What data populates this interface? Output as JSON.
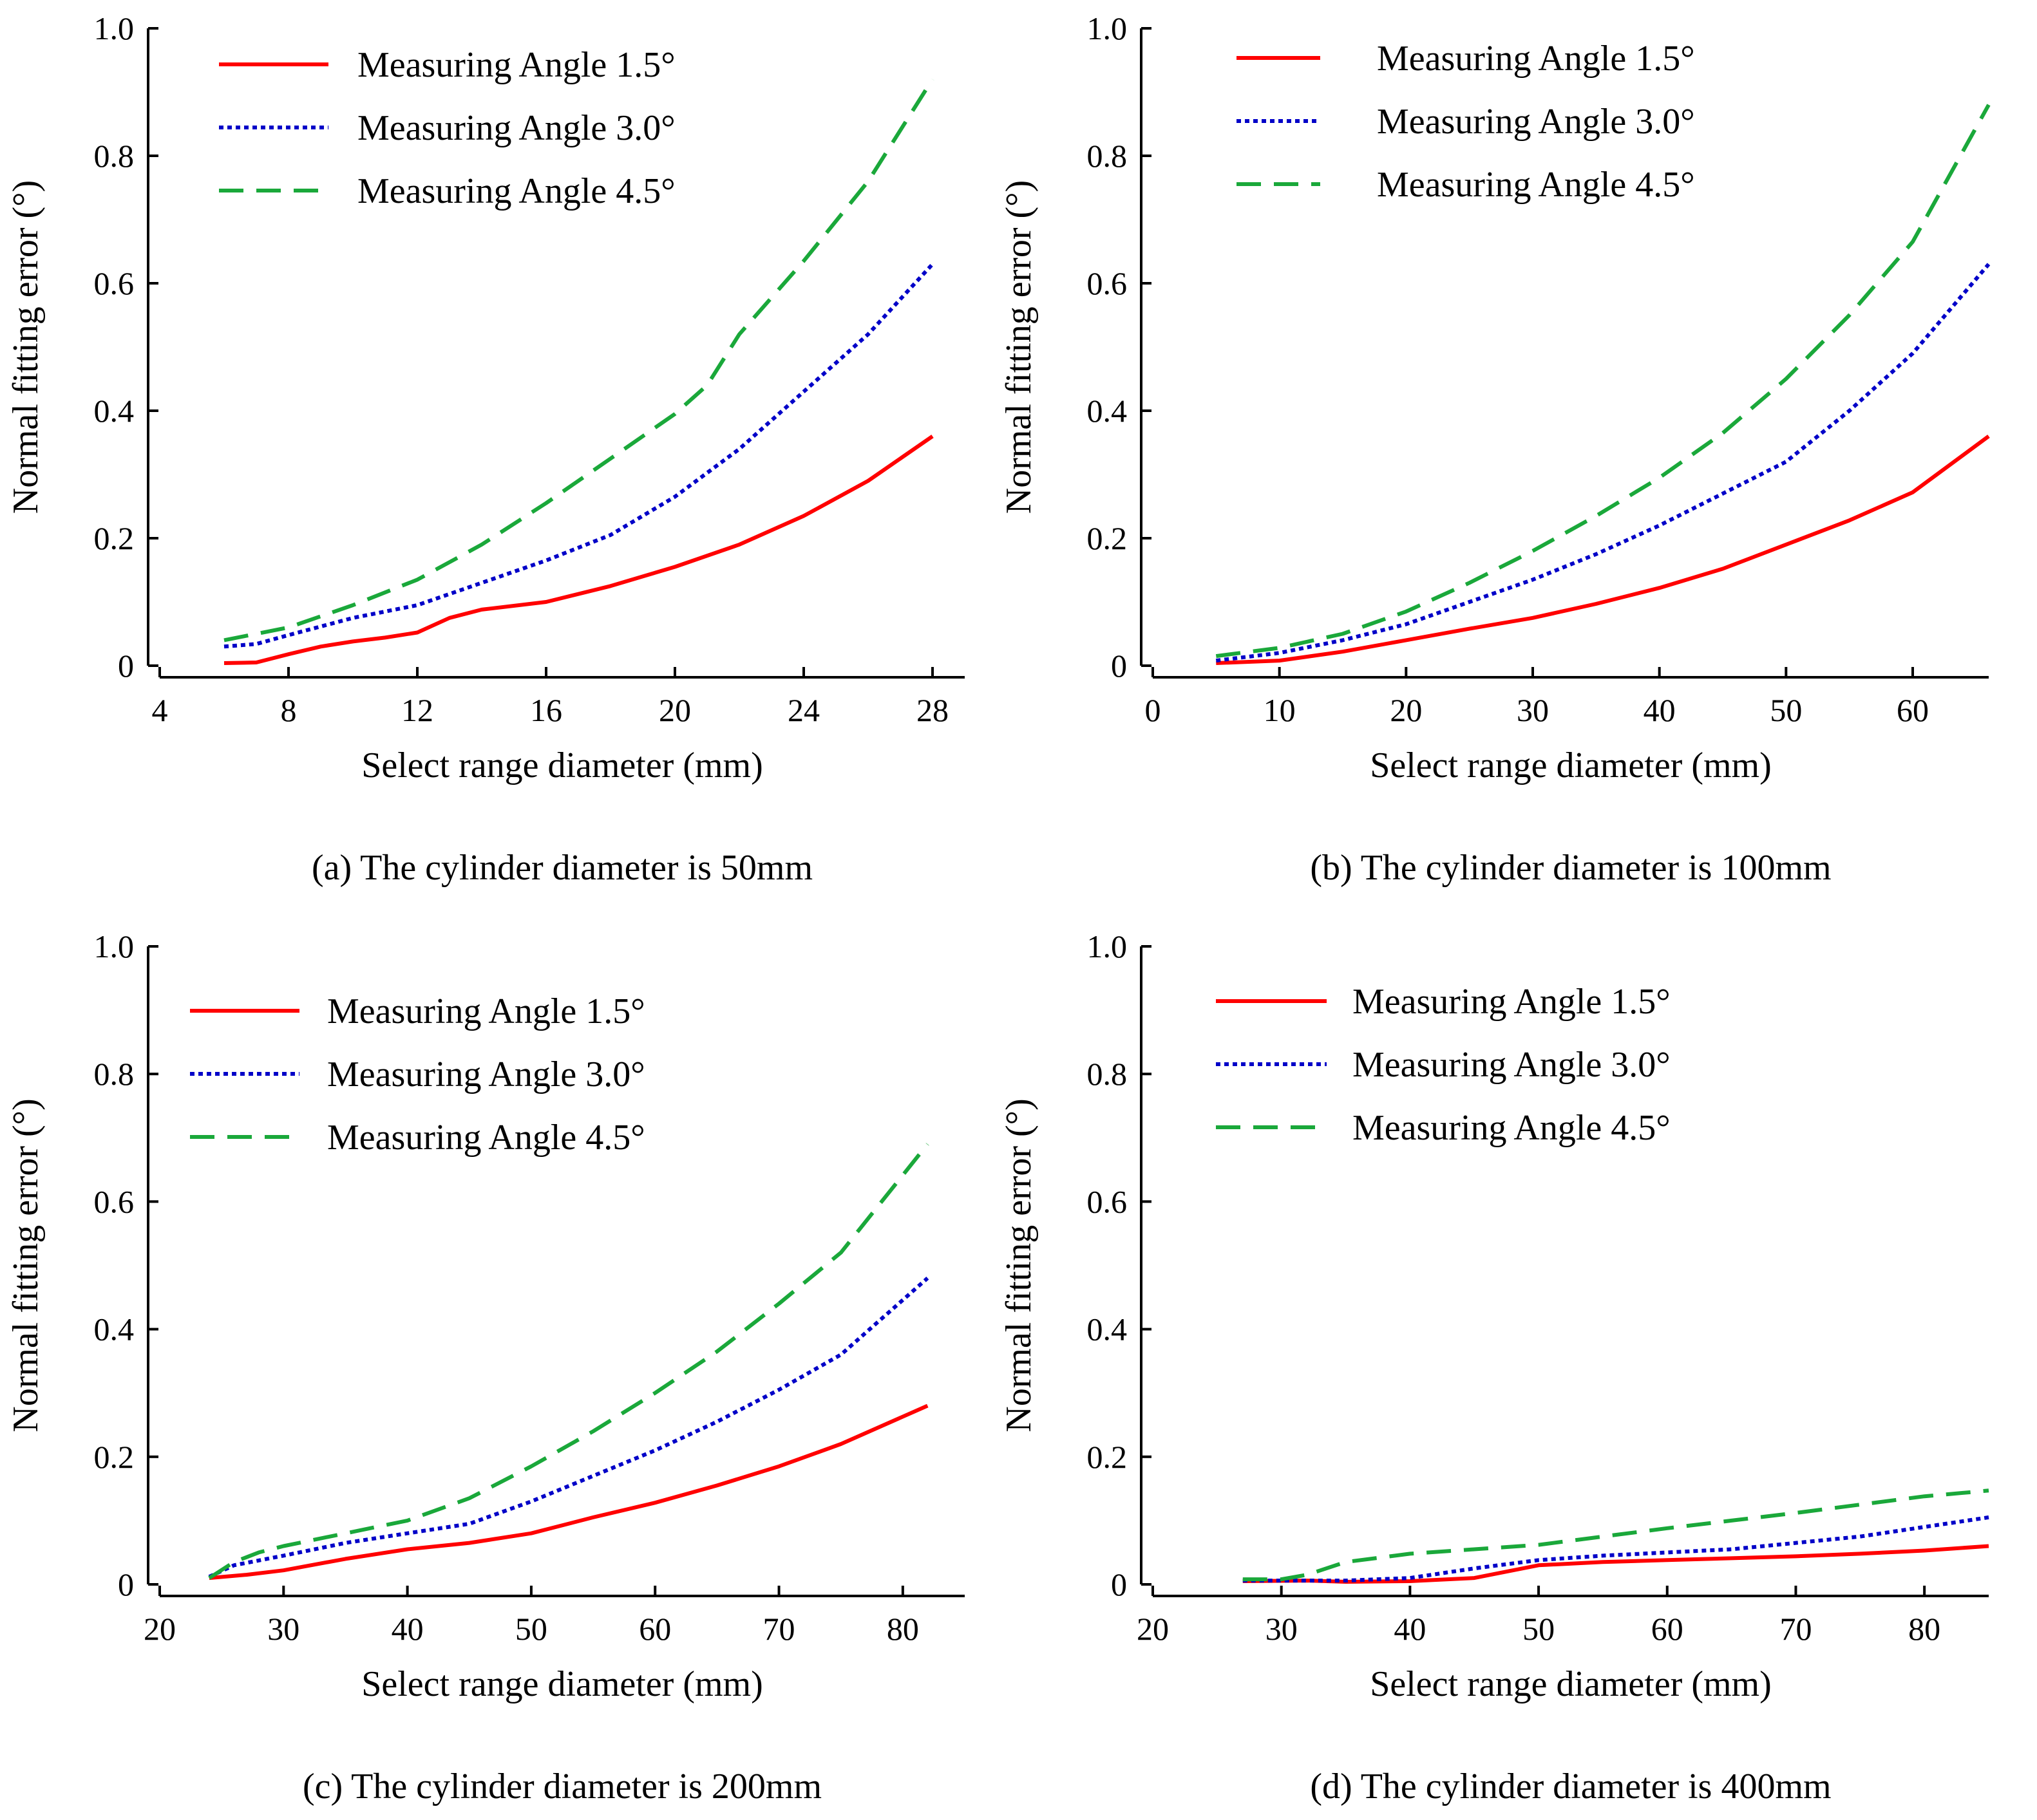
{
  "series_styles": [
    {
      "name": "Measuring Angle 1.5°",
      "color": "#ff0000",
      "dash": "solid"
    },
    {
      "name": "Measuring Angle 3.0°",
      "color": "#0000c8",
      "dash": "dotted"
    },
    {
      "name": "Measuring Angle 4.5°",
      "color": "#1aa83a",
      "dash": "dashed"
    }
  ],
  "chart_data": [
    {
      "type": "line",
      "title": "(a) The cylinder diameter is 50mm",
      "xlabel": "Select range diameter (mm)",
      "ylabel": "Normal fitting error (°)",
      "xlim": [
        4,
        29
      ],
      "ylim": [
        0,
        1.0
      ],
      "xticks": [
        4,
        8,
        12,
        16,
        20,
        24,
        28
      ],
      "yticks": [
        0,
        0.2,
        0.4,
        0.6,
        0.8,
        1.0
      ],
      "ytick_labels": [
        "0",
        "0.2",
        "0.4",
        "0.6",
        "0.8",
        "1.0"
      ],
      "legend_position": "top-left",
      "series": [
        {
          "name": "Measuring Angle 1.5°",
          "x": [
            6,
            7,
            8,
            9,
            10,
            11,
            12,
            13,
            14,
            16,
            18,
            20,
            22,
            24,
            26,
            28
          ],
          "y": [
            0.004,
            0.005,
            0.018,
            0.03,
            0.038,
            0.044,
            0.052,
            0.075,
            0.088,
            0.1,
            0.125,
            0.155,
            0.19,
            0.235,
            0.29,
            0.36
          ]
        },
        {
          "name": "Measuring Angle 3.0°",
          "x": [
            6,
            7,
            8,
            10,
            12,
            14,
            16,
            18,
            20,
            22,
            24,
            26,
            28
          ],
          "y": [
            0.03,
            0.034,
            0.048,
            0.075,
            0.095,
            0.13,
            0.165,
            0.205,
            0.265,
            0.34,
            0.43,
            0.52,
            0.63
          ]
        },
        {
          "name": "Measuring Angle 4.5°",
          "x": [
            6,
            8,
            10,
            12,
            14,
            16,
            18,
            20,
            21,
            22,
            24,
            26,
            28
          ],
          "y": [
            0.04,
            0.06,
            0.095,
            0.135,
            0.19,
            0.255,
            0.325,
            0.395,
            0.44,
            0.52,
            0.635,
            0.76,
            0.92
          ]
        }
      ]
    },
    {
      "type": "line",
      "title": "(b) The cylinder diameter is 100mm",
      "xlabel": "Select range diameter (mm)",
      "ylabel": "Normal fitting error (°)",
      "xlim": [
        0,
        66
      ],
      "ylim": [
        0,
        1.0
      ],
      "xticks": [
        0,
        10,
        20,
        30,
        40,
        50,
        60
      ],
      "yticks": [
        0,
        0.2,
        0.4,
        0.6,
        0.8,
        1.0
      ],
      "ytick_labels": [
        "0",
        "0.2",
        "0.4",
        "0.6",
        "0.8",
        "1.0"
      ],
      "legend_position": "top-left",
      "series": [
        {
          "name": "Measuring Angle 1.5°",
          "x": [
            5,
            10,
            15,
            20,
            25,
            30,
            35,
            40,
            45,
            50,
            55,
            60,
            66
          ],
          "y": [
            0.004,
            0.008,
            0.022,
            0.04,
            0.058,
            0.075,
            0.097,
            0.122,
            0.152,
            0.19,
            0.228,
            0.272,
            0.36
          ]
        },
        {
          "name": "Measuring Angle 3.0°",
          "x": [
            5,
            10,
            15,
            20,
            25,
            30,
            35,
            40,
            45,
            50,
            55,
            60,
            66
          ],
          "y": [
            0.008,
            0.02,
            0.04,
            0.065,
            0.1,
            0.135,
            0.175,
            0.22,
            0.27,
            0.32,
            0.4,
            0.49,
            0.63
          ]
        },
        {
          "name": "Measuring Angle 4.5°",
          "x": [
            5,
            10,
            15,
            20,
            25,
            30,
            35,
            40,
            45,
            50,
            55,
            60,
            66
          ],
          "y": [
            0.015,
            0.028,
            0.05,
            0.085,
            0.13,
            0.18,
            0.235,
            0.295,
            0.365,
            0.45,
            0.55,
            0.665,
            0.88
          ]
        }
      ]
    },
    {
      "type": "line",
      "title": "(c) The cylinder diameter is 200mm",
      "xlabel": "Select range diameter (mm)",
      "ylabel": "Normal fitting error (°)",
      "xlim": [
        20,
        85
      ],
      "ylim": [
        0,
        1.0
      ],
      "xticks": [
        20,
        30,
        40,
        50,
        60,
        70,
        80
      ],
      "yticks": [
        0,
        0.2,
        0.4,
        0.6,
        0.8,
        1.0
      ],
      "ytick_labels": [
        "0",
        "0.2",
        "0.4",
        "0.6",
        "0.8",
        "1.0"
      ],
      "legend_position": "top-left",
      "series": [
        {
          "name": "Measuring Angle 1.5°",
          "x": [
            24,
            27,
            30,
            35,
            40,
            45,
            50,
            55,
            60,
            65,
            70,
            75,
            82
          ],
          "y": [
            0.01,
            0.015,
            0.022,
            0.04,
            0.055,
            0.065,
            0.08,
            0.105,
            0.128,
            0.155,
            0.185,
            0.22,
            0.28
          ]
        },
        {
          "name": "Measuring Angle 3.0°",
          "x": [
            24,
            26,
            30,
            35,
            40,
            45,
            50,
            55,
            60,
            65,
            70,
            75,
            82
          ],
          "y": [
            0.012,
            0.03,
            0.045,
            0.065,
            0.08,
            0.095,
            0.13,
            0.17,
            0.21,
            0.255,
            0.305,
            0.36,
            0.48
          ]
        },
        {
          "name": "Measuring Angle 4.5°",
          "x": [
            24,
            26,
            28,
            30,
            35,
            40,
            45,
            50,
            55,
            60,
            65,
            70,
            75,
            82
          ],
          "y": [
            0.01,
            0.035,
            0.05,
            0.06,
            0.08,
            0.1,
            0.135,
            0.185,
            0.24,
            0.3,
            0.365,
            0.44,
            0.52,
            0.69
          ]
        }
      ]
    },
    {
      "type": "line",
      "title": "(d) The cylinder diameter is 400mm",
      "xlabel": "Select range diameter (mm)",
      "ylabel": "Normal fitting error (°)",
      "xlim": [
        20,
        85
      ],
      "ylim": [
        0,
        1.0
      ],
      "xticks": [
        20,
        30,
        40,
        50,
        60,
        70,
        80
      ],
      "yticks": [
        0,
        0.2,
        0.4,
        0.6,
        0.8,
        1.0
      ],
      "ytick_labels": [
        "0",
        "0.2",
        "0.4",
        "0.6",
        "0.8",
        "1.0"
      ],
      "legend_position": "top-left",
      "series": [
        {
          "name": "Measuring Angle 1.5°",
          "x": [
            27,
            32,
            35,
            40,
            45,
            50,
            55,
            60,
            65,
            70,
            75,
            80,
            85
          ],
          "y": [
            0.005,
            0.006,
            0.004,
            0.005,
            0.01,
            0.03,
            0.035,
            0.038,
            0.041,
            0.044,
            0.048,
            0.053,
            0.06
          ]
        },
        {
          "name": "Measuring Angle 3.0°",
          "x": [
            27,
            35,
            40,
            45,
            50,
            55,
            60,
            65,
            70,
            75,
            80,
            85
          ],
          "y": [
            0.006,
            0.006,
            0.01,
            0.025,
            0.038,
            0.045,
            0.05,
            0.055,
            0.065,
            0.075,
            0.09,
            0.105
          ]
        },
        {
          "name": "Measuring Angle 4.5°",
          "x": [
            27,
            30,
            32,
            35,
            40,
            45,
            50,
            55,
            60,
            65,
            70,
            75,
            80,
            85
          ],
          "y": [
            0.008,
            0.008,
            0.015,
            0.035,
            0.048,
            0.055,
            0.062,
            0.075,
            0.088,
            0.1,
            0.112,
            0.125,
            0.138,
            0.147
          ]
        }
      ]
    }
  ]
}
